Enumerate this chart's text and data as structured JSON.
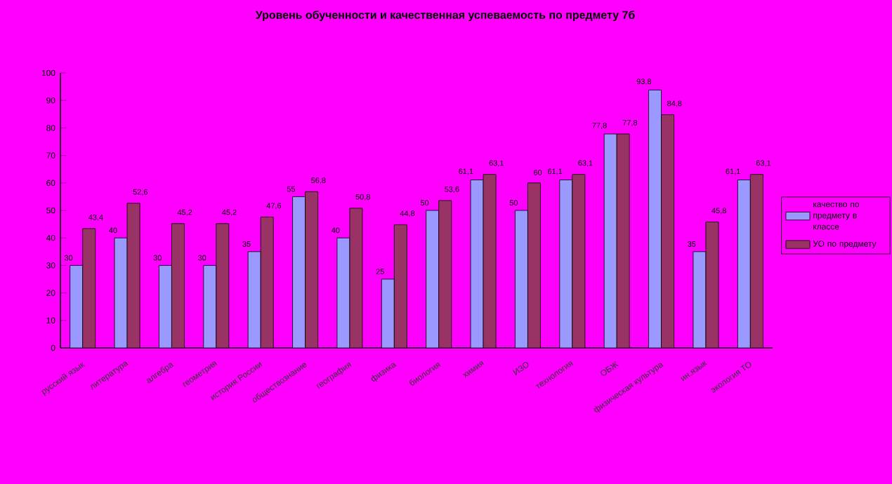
{
  "chart_data": {
    "type": "bar",
    "title": "Уровень обученности и качественная успеваемость по предмету 7б",
    "categories": [
      "русский язык",
      "литература",
      "алгебра",
      "геометрия",
      "история России",
      "обществознание",
      "география",
      "физика",
      "биология",
      "химия",
      "ИЗО",
      "технология",
      "ОБЖ",
      "физическая культура",
      "ин.язык",
      "экология ТО"
    ],
    "series": [
      {
        "name": "качество по предмету в классе",
        "color": "#9999ff",
        "values": [
          30,
          40,
          30,
          30,
          35,
          55,
          40,
          25,
          50,
          61.1,
          50,
          61.1,
          77.8,
          93.8,
          35,
          61.1
        ],
        "value_labels": [
          "30",
          "40",
          "30",
          "30",
          "35",
          "55",
          "40",
          "25",
          "50",
          "61,1",
          "50",
          "61,1",
          "77,8",
          "93,8",
          "35",
          "61,1"
        ]
      },
      {
        "name": "УО по предмету",
        "color": "#993366",
        "values": [
          43.4,
          52.6,
          45.2,
          45.2,
          47.6,
          56.8,
          50.8,
          44.8,
          53.6,
          63.1,
          60,
          63.1,
          77.8,
          84.8,
          45.8,
          63.1
        ],
        "value_labels": [
          "43,4",
          "52,6",
          "45,2",
          "45,2",
          "47,6",
          "56,8",
          "50,8",
          "44,8",
          "53,6",
          "63,1",
          "60",
          "63,1",
          "77,8",
          "84,8",
          "45,8",
          "63,1"
        ]
      }
    ],
    "ylim": [
      0,
      100
    ],
    "yticks": [
      0,
      10,
      20,
      30,
      40,
      50,
      60,
      70,
      80,
      90,
      100
    ],
    "grid": false,
    "legend": "right"
  }
}
